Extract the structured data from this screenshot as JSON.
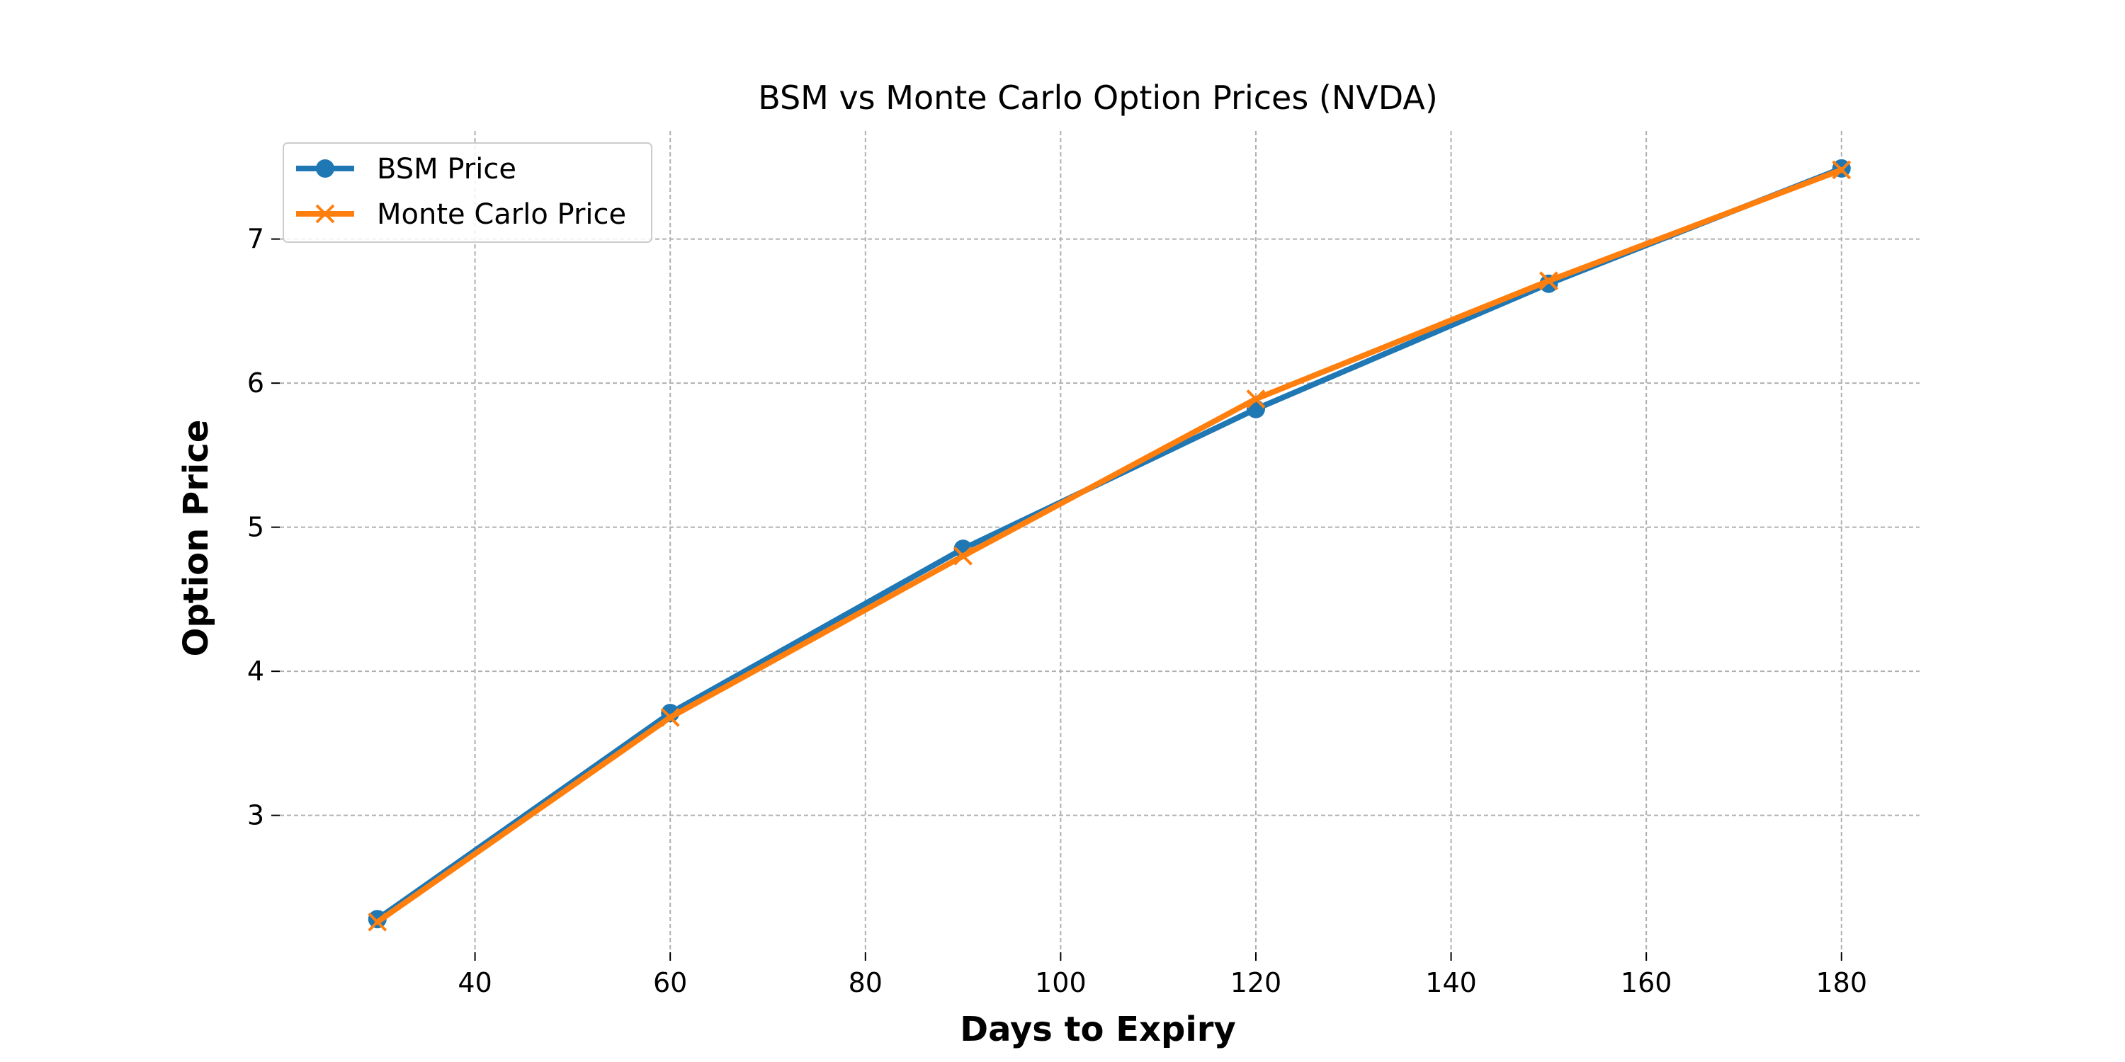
{
  "chart_data": {
    "type": "line",
    "title": "BSM vs Monte Carlo Option Prices (NVDA)",
    "xlabel": "Days to Expiry",
    "ylabel": "Option Price",
    "x": [
      30,
      60,
      90,
      120,
      150,
      180
    ],
    "xlim": [
      20,
      188
    ],
    "ylim": [
      2.05,
      7.75
    ],
    "xticks": [
      40,
      60,
      80,
      100,
      120,
      140,
      160,
      180
    ],
    "yticks": [
      3,
      4,
      5,
      6,
      7
    ],
    "grid": true,
    "legend_position": "top-left",
    "series": [
      {
        "name": "BSM Price",
        "values": [
          2.28,
          3.71,
          4.85,
          5.82,
          6.69,
          7.49
        ],
        "color": "#1f77b4",
        "marker": "circle"
      },
      {
        "name": "Monte Carlo Price",
        "values": [
          2.26,
          3.68,
          4.8,
          5.89,
          6.71,
          7.48
        ],
        "color": "#ff7f0e",
        "marker": "x"
      }
    ]
  }
}
